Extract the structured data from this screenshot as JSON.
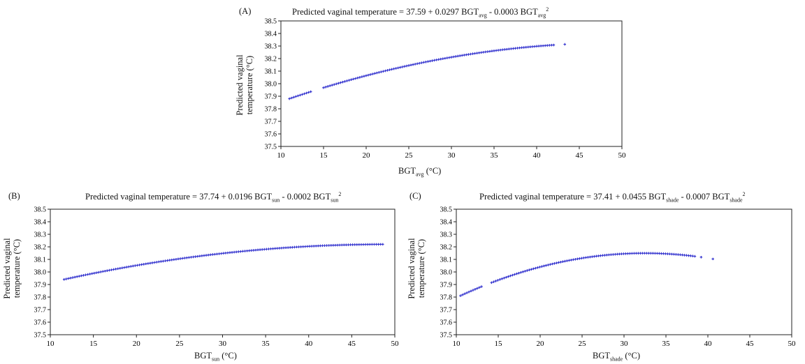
{
  "chart_data": [
    {
      "type": "scatter",
      "panel_label": "(A)",
      "title": {
        "prefix": "Predicted  vaginal temperature = 37.59 + 0.0297 BGT",
        "sub1": "avg",
        "mid": " - 0.0003  BGT",
        "sub2": "avg",
        "sup": "2"
      },
      "equation": {
        "a": 37.59,
        "b": 0.0297,
        "c": -0.0003
      },
      "xlabel": {
        "main": "BGT",
        "sub": "avg",
        "unit": " (°C)"
      },
      "ylabel": [
        "Predicted vaginal",
        "temperature (°C)"
      ],
      "xlim": [
        10,
        50
      ],
      "ylim": [
        37.5,
        38.5
      ],
      "xticks": [
        "10",
        "15",
        "20",
        "25",
        "30",
        "35",
        "40",
        "45",
        "50"
      ],
      "yticks": [
        "37.5",
        "37.6",
        "37.7",
        "37.8",
        "37.9",
        "38.0",
        "38.1",
        "38.2",
        "38.3",
        "38.4",
        "38.5"
      ],
      "x_segments": [
        [
          11.0,
          13.5
        ],
        [
          15.0,
          42.0
        ]
      ],
      "x_extra": [
        43.3
      ],
      "grid": false,
      "marker_color": "#3a3ad0"
    },
    {
      "type": "scatter",
      "panel_label": "(B)",
      "title": {
        "prefix": "Predicted  vaginal temperature = 37.74 + 0.0196 BGT",
        "sub1": "sun",
        "mid": " - 0.0002  BGT",
        "sub2": "sun",
        "sup": "2"
      },
      "equation": {
        "a": 37.74,
        "b": 0.0196,
        "c": -0.0002
      },
      "xlabel": {
        "main": "BGT",
        "sub": "sun",
        "unit": " (°C)"
      },
      "ylabel": [
        "Predicted vaginal",
        "temperature (°C)"
      ],
      "xlim": [
        10,
        50
      ],
      "ylim": [
        37.5,
        38.5
      ],
      "xticks": [
        "10",
        "15",
        "20",
        "25",
        "30",
        "35",
        "40",
        "45",
        "50"
      ],
      "yticks": [
        "37.5",
        "37.6",
        "37.7",
        "37.8",
        "37.9",
        "38.0",
        "38.1",
        "38.2",
        "38.3",
        "38.4",
        "38.5"
      ],
      "x_segments": [
        [
          11.6,
          48.8
        ]
      ],
      "x_extra": [],
      "grid": false,
      "marker_color": "#3a3ad0"
    },
    {
      "type": "scatter",
      "panel_label": "(C)",
      "title": {
        "prefix": "Predicted  vaginal temperature = 37.41 + 0.0455 BGT",
        "sub1": "shade",
        "mid": " - 0.0007  BGT",
        "sub2": "shade",
        "sup": "2"
      },
      "equation": {
        "a": 37.41,
        "b": 0.0455,
        "c": -0.0007
      },
      "xlabel": {
        "main": "BGT",
        "sub": "shade",
        "unit": " (°C)"
      },
      "ylabel": [
        "Predicted vaginal",
        "temperature (°C)"
      ],
      "xlim": [
        10,
        50
      ],
      "ylim": [
        37.5,
        38.5
      ],
      "xticks": [
        "10",
        "15",
        "20",
        "25",
        "30",
        "35",
        "40",
        "45",
        "50"
      ],
      "yticks": [
        "37.5",
        "37.6",
        "37.7",
        "37.8",
        "37.9",
        "38.0",
        "38.1",
        "38.2",
        "38.3",
        "38.4",
        "38.5"
      ],
      "x_segments": [
        [
          10.5,
          13.2
        ],
        [
          14.2,
          38.5
        ]
      ],
      "x_extra": [
        39.2,
        40.6
      ],
      "grid": false,
      "marker_color": "#3a3ad0"
    }
  ]
}
